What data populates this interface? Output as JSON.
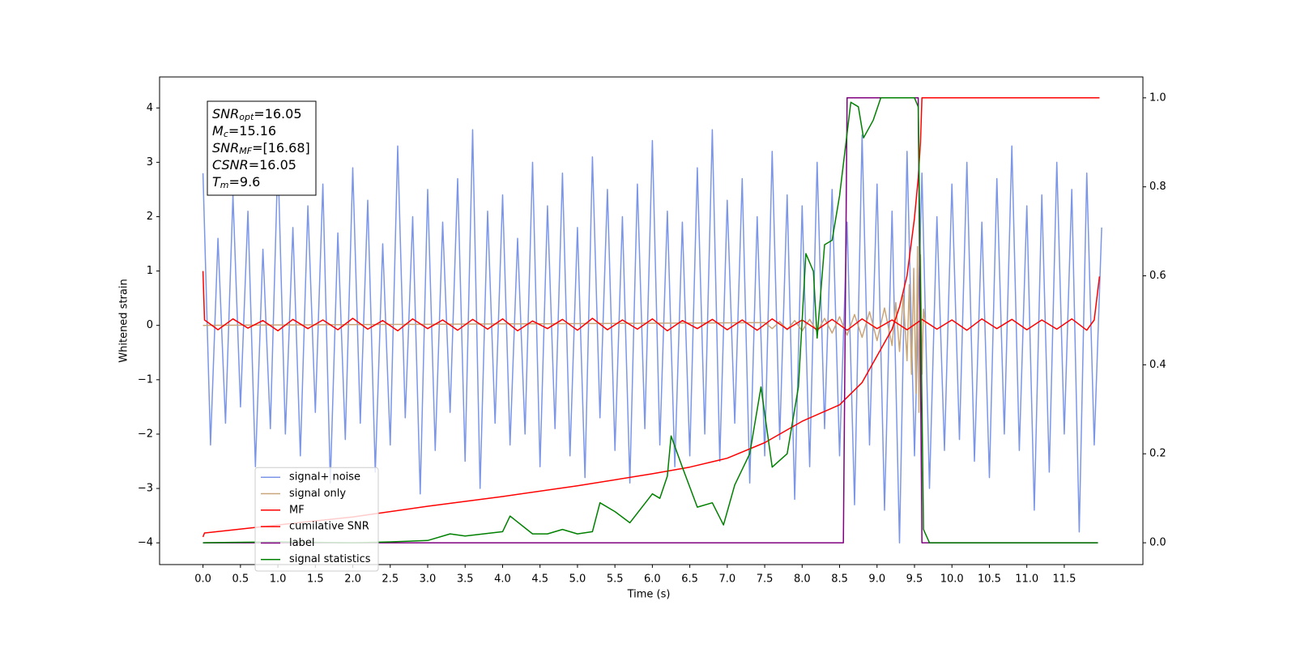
{
  "chart_data": {
    "type": "line",
    "xlabel": "Time (s)",
    "ylabel": "Whitened strain",
    "xlim": [
      -0.58,
      12.55
    ],
    "ylim": [
      -4.4,
      4.57
    ],
    "y2lim": [
      -0.049,
      1.047
    ],
    "xticks": [
      {
        "value": 0,
        "label": "0.0"
      },
      {
        "value": 0.5,
        "label": "0.5"
      },
      {
        "value": 1,
        "label": "1.0"
      },
      {
        "value": 1.5,
        "label": "1.5"
      },
      {
        "value": 2,
        "label": "2.0"
      },
      {
        "value": 2.5,
        "label": "2.5"
      },
      {
        "value": 3,
        "label": "3.0"
      },
      {
        "value": 3.5,
        "label": "3.5"
      },
      {
        "value": 4,
        "label": "4.0"
      },
      {
        "value": 4.5,
        "label": "4.5"
      },
      {
        "value": 5,
        "label": "5.0"
      },
      {
        "value": 5.5,
        "label": "5.5"
      },
      {
        "value": 6,
        "label": "6.0"
      },
      {
        "value": 6.5,
        "label": "6.5"
      },
      {
        "value": 7,
        "label": "7.0"
      },
      {
        "value": 7.5,
        "label": "7.5"
      },
      {
        "value": 8,
        "label": "8.0"
      },
      {
        "value": 8.5,
        "label": "8.5"
      },
      {
        "value": 9,
        "label": "9.0"
      },
      {
        "value": 9.5,
        "label": "9.5"
      },
      {
        "value": 10,
        "label": "10.0"
      },
      {
        "value": 10.5,
        "label": "10.5"
      },
      {
        "value": 11,
        "label": "11.0"
      },
      {
        "value": 11.5,
        "label": "11.5"
      }
    ],
    "yticks": [
      {
        "value": -4,
        "label": "−4"
      },
      {
        "value": -3,
        "label": "−3"
      },
      {
        "value": -2,
        "label": "−2"
      },
      {
        "value": -1,
        "label": "−1"
      },
      0,
      1,
      2,
      3,
      4
    ],
    "y2ticks": [
      {
        "value": 0,
        "label": "0.0"
      },
      {
        "value": 0.2,
        "label": "0.2"
      },
      {
        "value": 0.4,
        "label": "0.4"
      },
      {
        "value": 0.6,
        "label": "0.6"
      },
      {
        "value": 0.8,
        "label": "0.8"
      },
      {
        "value": 1,
        "label": "1.0"
      }
    ],
    "legend": "lower left",
    "annotations": [
      {
        "symbol": "SNR",
        "subscript": "opt",
        "text": "=16.05"
      },
      {
        "symbol": "M",
        "subscript": "c",
        "text": "=15.16"
      },
      {
        "symbol": "SNR",
        "subscript": "MF",
        "text": "=[16.68]"
      },
      {
        "symbol": "CSNR",
        "subscript": "",
        "text": "=16.05"
      },
      {
        "symbol": "T",
        "subscript": "m",
        "text": "=9.6"
      }
    ],
    "series": [
      {
        "name": "signal+ noise",
        "color": "#7b96e8",
        "axis": "y",
        "x": [
          0,
          0.1,
          0.2,
          0.3,
          0.4,
          0.5,
          0.6,
          0.7,
          0.8,
          0.9,
          1,
          1.1,
          1.2,
          1.3,
          1.4,
          1.5,
          1.6,
          1.7,
          1.8,
          1.9,
          2,
          2.1,
          2.2,
          2.3,
          2.4,
          2.5,
          2.6,
          2.7,
          2.8,
          2.9,
          3,
          3.1,
          3.2,
          3.3,
          3.4,
          3.5,
          3.6,
          3.7,
          3.8,
          3.9,
          4,
          4.1,
          4.2,
          4.3,
          4.4,
          4.5,
          4.6,
          4.7,
          4.8,
          4.9,
          5,
          5.1,
          5.2,
          5.3,
          5.4,
          5.5,
          5.6,
          5.7,
          5.8,
          5.9,
          6,
          6.1,
          6.2,
          6.3,
          6.4,
          6.5,
          6.6,
          6.7,
          6.8,
          6.9,
          7,
          7.1,
          7.2,
          7.3,
          7.4,
          7.5,
          7.6,
          7.7,
          7.8,
          7.9,
          8,
          8.1,
          8.2,
          8.3,
          8.4,
          8.5,
          8.6,
          8.7,
          8.8,
          8.9,
          9,
          9.1,
          9.2,
          9.3,
          9.4,
          9.5,
          9.6,
          9.7,
          9.8,
          9.9,
          10,
          10.1,
          10.2,
          10.3,
          10.4,
          10.5,
          10.6,
          10.7,
          10.8,
          10.9,
          11,
          11.1,
          11.2,
          11.3,
          11.4,
          11.5,
          11.6,
          11.7,
          11.8,
          11.9,
          12
        ],
        "values": [
          2.8,
          -2.2,
          1.6,
          -1.8,
          2.4,
          -1.5,
          2.1,
          -2.6,
          1.4,
          -1.9,
          3.1,
          -2.0,
          1.8,
          -2.4,
          2.2,
          -1.6,
          2.6,
          -2.9,
          1.7,
          -2.1,
          2.9,
          -1.8,
          2.3,
          -2.7,
          1.5,
          -2.2,
          3.3,
          -1.7,
          2.0,
          -3.1,
          2.5,
          -2.3,
          1.9,
          -1.6,
          2.7,
          -2.5,
          3.6,
          -3.0,
          2.1,
          -1.8,
          2.4,
          -2.2,
          1.6,
          -2.0,
          3.0,
          -2.6,
          2.2,
          -1.9,
          2.8,
          -2.4,
          1.8,
          -2.8,
          3.1,
          -1.7,
          2.5,
          -2.3,
          2.0,
          -2.9,
          2.6,
          -1.9,
          3.4,
          -2.2,
          2.1,
          -2.6,
          1.9,
          -2.4,
          2.9,
          -2.0,
          3.6,
          -2.5,
          2.3,
          -1.8,
          2.7,
          -2.9,
          2.0,
          -2.4,
          3.2,
          -2.1,
          2.4,
          -3.2,
          2.2,
          -2.6,
          3.0,
          -1.9,
          2.5,
          -2.4,
          1.9,
          -3.3,
          3.5,
          -2.2,
          2.6,
          -3.4,
          2.1,
          -4.0,
          3.2,
          -2.4,
          2.8,
          -3.0,
          2.0,
          -2.3,
          2.6,
          -2.1,
          3.0,
          -2.5,
          1.9,
          -2.8,
          2.7,
          -2.0,
          3.3,
          -2.3,
          2.2,
          -3.4,
          2.4,
          -2.7,
          3.0,
          -2.0,
          2.5,
          -3.8,
          2.8,
          -2.2,
          1.8
        ]
      },
      {
        "name": "signal only",
        "color": "#c9a57a",
        "axis": "y",
        "x": [
          0,
          7.5,
          7.6,
          7.7,
          7.8,
          7.9,
          8,
          8.1,
          8.2,
          8.3,
          8.4,
          8.5,
          8.6,
          8.7,
          8.8,
          8.9,
          9,
          9.1,
          9.2,
          9.25,
          9.3,
          9.35,
          9.4,
          9.43,
          9.46,
          9.49,
          9.52,
          9.54,
          9.56,
          9.58,
          9.6,
          9.62,
          9.65
        ],
        "values": [
          0,
          0.05,
          -0.06,
          0.07,
          -0.08,
          0.09,
          -0.1,
          0.11,
          -0.12,
          0.13,
          -0.14,
          0.16,
          -0.18,
          0.2,
          -0.22,
          0.25,
          -0.28,
          0.32,
          -0.37,
          0.42,
          -0.48,
          0.55,
          -0.65,
          0.75,
          -0.9,
          1.05,
          -1.25,
          1.45,
          -1.6,
          1.3,
          -0.9,
          0.3,
          0
        ]
      },
      {
        "name": "MF",
        "color": "#ff0000",
        "axis": "y",
        "x": [
          0,
          0.02,
          0.2,
          0.4,
          0.6,
          0.8,
          1,
          1.2,
          1.4,
          1.6,
          1.8,
          2,
          2.2,
          2.4,
          2.6,
          2.8,
          3,
          3.2,
          3.4,
          3.6,
          3.8,
          4,
          4.2,
          4.4,
          4.6,
          4.8,
          5,
          5.2,
          5.4,
          5.6,
          5.8,
          6,
          6.2,
          6.4,
          6.6,
          6.8,
          7,
          7.2,
          7.4,
          7.6,
          7.8,
          8,
          8.2,
          8.4,
          8.6,
          8.8,
          9,
          9.2,
          9.4,
          9.6,
          9.8,
          10,
          10.2,
          10.4,
          10.6,
          10.8,
          11,
          11.2,
          11.4,
          11.6,
          11.8,
          11.9,
          11.97
        ],
        "values": [
          1.0,
          0.1,
          -0.08,
          0.12,
          -0.05,
          0.09,
          -0.1,
          0.11,
          -0.06,
          0.1,
          -0.08,
          0.13,
          -0.07,
          0.09,
          -0.1,
          0.12,
          -0.06,
          0.1,
          -0.09,
          0.11,
          -0.07,
          0.12,
          -0.1,
          0.08,
          -0.06,
          0.11,
          -0.09,
          0.13,
          -0.08,
          0.1,
          -0.07,
          0.12,
          -0.1,
          0.09,
          -0.06,
          0.11,
          -0.08,
          0.1,
          -0.09,
          0.12,
          -0.07,
          0.1,
          -0.08,
          0.11,
          -0.09,
          0.12,
          -0.06,
          0.1,
          -0.08,
          0.11,
          -0.07,
          0.1,
          -0.09,
          0.12,
          -0.06,
          0.11,
          -0.08,
          0.1,
          -0.07,
          0.12,
          -0.09,
          0.1,
          0.9
        ]
      },
      {
        "name": "cumilative SNR",
        "color": "#ff0000",
        "axis": "y2",
        "x": [
          0,
          0.02,
          1,
          2,
          3,
          4,
          5,
          6,
          6.5,
          7,
          7.5,
          8,
          8.5,
          8.8,
          9,
          9.2,
          9.3,
          9.4,
          9.5,
          9.55,
          9.58,
          9.6,
          10,
          11,
          11.97
        ],
        "values": [
          0.013,
          0.022,
          0.04,
          0.058,
          0.082,
          0.104,
          0.128,
          0.155,
          0.17,
          0.19,
          0.225,
          0.273,
          0.31,
          0.36,
          0.42,
          0.48,
          0.53,
          0.6,
          0.73,
          0.82,
          0.9,
          1.0,
          1.0,
          1.0,
          1.0
        ]
      },
      {
        "name": "label",
        "color": "#800080",
        "axis": "y2",
        "x": [
          0,
          8.55,
          8.6,
          9.55,
          9.6,
          11.95
        ],
        "values": [
          0,
          0,
          1,
          1,
          0,
          0
        ]
      },
      {
        "name": "signal statistics",
        "color": "#008000",
        "axis": "y2",
        "x": [
          0,
          1,
          2,
          2.5,
          3,
          3.3,
          3.5,
          4,
          4.1,
          4.4,
          4.6,
          4.8,
          5,
          5.2,
          5.3,
          5.5,
          5.7,
          6,
          6.1,
          6.2,
          6.25,
          6.4,
          6.6,
          6.8,
          6.95,
          7.1,
          7.3,
          7.45,
          7.6,
          7.8,
          7.95,
          8.05,
          8.15,
          8.2,
          8.3,
          8.4,
          8.5,
          8.65,
          8.75,
          8.82,
          8.95,
          9.05,
          9.5,
          9.55,
          9.62,
          9.7,
          11.95
        ],
        "values": [
          0,
          0.002,
          0,
          0.002,
          0.005,
          0.02,
          0.015,
          0.025,
          0.06,
          0.02,
          0.02,
          0.03,
          0.02,
          0.025,
          0.09,
          0.07,
          0.045,
          0.11,
          0.1,
          0.15,
          0.24,
          0.17,
          0.08,
          0.09,
          0.04,
          0.13,
          0.2,
          0.35,
          0.17,
          0.2,
          0.35,
          0.65,
          0.61,
          0.46,
          0.67,
          0.68,
          0.78,
          0.99,
          0.98,
          0.91,
          0.95,
          1.0,
          1.0,
          0.98,
          0.03,
          0,
          0
        ]
      }
    ]
  }
}
